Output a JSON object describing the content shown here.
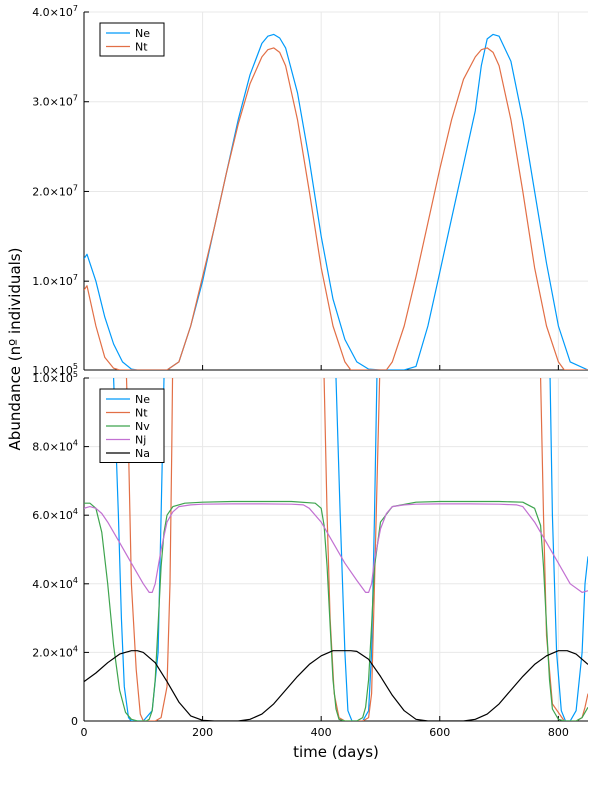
{
  "chart_data": [
    {
      "type": "line",
      "panel": "top",
      "xlim": [
        0,
        850
      ],
      "ylim": [
        100000,
        40000000
      ],
      "ytick_values": [
        10000000,
        20000000,
        30000000,
        40000000
      ],
      "ytick_labels": [
        {
          "mant": "1.0×10",
          "exp": "7"
        },
        {
          "mant": "2.0×10",
          "exp": "7"
        },
        {
          "mant": "3.0×10",
          "exp": "7"
        },
        {
          "mant": "4.0×10",
          "exp": "7"
        }
      ],
      "ytick_bottom": {
        "mant": "1.0×10",
        "exp": "5"
      },
      "grid": true,
      "legend_position": "top-left",
      "series": [
        {
          "name": "Ne",
          "color": "#009AFA",
          "x": [
            0,
            5,
            20,
            35,
            50,
            65,
            80,
            90,
            100,
            140,
            160,
            180,
            200,
            220,
            240,
            260,
            280,
            300,
            310,
            320,
            330,
            340,
            360,
            380,
            400,
            420,
            440,
            460,
            480,
            500,
            520,
            540,
            560,
            580,
            600,
            620,
            640,
            660,
            670,
            680,
            690,
            700,
            720,
            740,
            760,
            780,
            800,
            820,
            850
          ],
          "y": [
            12500000,
            13000000,
            10000000,
            6000000,
            3000000,
            1000000,
            200000,
            100000,
            100000,
            100000,
            1000000,
            5000000,
            10000000,
            16000000,
            22000000,
            28000000,
            33000000,
            36500000,
            37300000,
            37500000,
            37100000,
            36000000,
            31000000,
            23500000,
            15000000,
            8000000,
            3500000,
            1000000,
            200000,
            100000,
            100000,
            100000,
            500000,
            5000000,
            11000000,
            17000000,
            23000000,
            29000000,
            34000000,
            37000000,
            37500000,
            37300000,
            34500000,
            28000000,
            20000000,
            12000000,
            5000000,
            1000000,
            100000
          ]
        },
        {
          "name": "Nt",
          "color": "#E26F46",
          "x": [
            0,
            5,
            20,
            35,
            50,
            60,
            70,
            80,
            140,
            160,
            180,
            200,
            220,
            240,
            260,
            280,
            300,
            310,
            320,
            330,
            340,
            360,
            380,
            400,
            420,
            440,
            450,
            510,
            520,
            540,
            560,
            580,
            600,
            620,
            640,
            660,
            670,
            680,
            690,
            700,
            720,
            740,
            760,
            780,
            800,
            810,
            850
          ],
          "y": [
            9000000,
            9500000,
            5000000,
            1500000,
            300000,
            100000,
            100000,
            100000,
            100000,
            1000000,
            5000000,
            10500000,
            16000000,
            22000000,
            27500000,
            32000000,
            35000000,
            35800000,
            36000000,
            35500000,
            34000000,
            28000000,
            20000000,
            11500000,
            5000000,
            1000000,
            100000,
            100000,
            1000000,
            5000000,
            10500000,
            16500000,
            22500000,
            28000000,
            32500000,
            35000000,
            35800000,
            36000000,
            35500000,
            34000000,
            28000000,
            20000000,
            11500000,
            5000000,
            1000000,
            100000,
            100000
          ]
        }
      ]
    },
    {
      "type": "line",
      "panel": "bottom",
      "xlim": [
        0,
        850
      ],
      "ylim": [
        0,
        100000
      ],
      "xtick_values": [
        0,
        200,
        400,
        600,
        800
      ],
      "xtick_labels": [
        "0",
        "200",
        "400",
        "600",
        "800"
      ],
      "ytick_values": [
        0,
        20000,
        40000,
        60000,
        80000,
        100000
      ],
      "ytick_labels": [
        {
          "mant": "0",
          "exp": ""
        },
        {
          "mant": "2.0×10",
          "exp": "4"
        },
        {
          "mant": "4.0×10",
          "exp": "4"
        },
        {
          "mant": "6.0×10",
          "exp": "4"
        },
        {
          "mant": "8.0×10",
          "exp": "4"
        },
        {
          "mant": "1.0×10",
          "exp": "5"
        }
      ],
      "xlabel": "time (days)",
      "grid": true,
      "legend_position": "top-left",
      "series": [
        {
          "name": "Ne",
          "color": "#009AFA",
          "x": [
            0,
            40,
            50,
            58,
            63,
            68,
            75,
            80,
            85,
            100,
            115,
            125,
            130,
            135,
            140,
            420,
            425,
            432,
            440,
            445,
            452,
            460,
            470,
            480,
            485,
            490,
            495,
            785,
            790,
            797,
            805,
            812,
            820,
            830,
            840,
            845,
            850
          ],
          "y": [
            110000,
            110000,
            100000,
            60000,
            30000,
            10000,
            1000,
            0,
            0,
            0,
            3000,
            20000,
            60000,
            100000,
            110000,
            110000,
            100000,
            60000,
            20000,
            3000,
            0,
            0,
            0,
            3000,
            20000,
            60000,
            110000,
            110000,
            60000,
            20000,
            3000,
            0,
            0,
            3000,
            20000,
            40000,
            48000
          ]
        },
        {
          "name": "Nt",
          "color": "#E26F46",
          "x": [
            0,
            70,
            75,
            80,
            88,
            95,
            100,
            120,
            130,
            140,
            145,
            148,
            150,
            400,
            405,
            410,
            415,
            422,
            430,
            440,
            470,
            480,
            485,
            490,
            500,
            765,
            770,
            775,
            780,
            790,
            810,
            830,
            840,
            845,
            850
          ],
          "y": [
            110000,
            110000,
            80000,
            40000,
            15000,
            2000,
            0,
            0,
            1000,
            10000,
            40000,
            80000,
            110000,
            110000,
            100000,
            60000,
            30000,
            8000,
            1000,
            0,
            0,
            1000,
            8000,
            40000,
            110000,
            110000,
            100000,
            60000,
            25000,
            5000,
            0,
            0,
            1000,
            4000,
            8000
          ]
        },
        {
          "name": "Nv",
          "color": "#3EA44E",
          "x": [
            0,
            10,
            20,
            30,
            40,
            50,
            60,
            70,
            80,
            90,
            100,
            105,
            110,
            115,
            120,
            125,
            130,
            135,
            140,
            150,
            170,
            200,
            250,
            300,
            350,
            390,
            400,
            405,
            410,
            415,
            420,
            425,
            430,
            440,
            450,
            460,
            470,
            475,
            480,
            485,
            490,
            500,
            520,
            560,
            600,
            650,
            700,
            740,
            760,
            770,
            775,
            780,
            785,
            790,
            800,
            810,
            820,
            830,
            840,
            850
          ],
          "y": [
            63500,
            63500,
            62000,
            55000,
            40000,
            22000,
            9000,
            2500,
            500,
            0,
            0,
            0,
            500,
            3000,
            12000,
            28000,
            45000,
            55000,
            60000,
            62500,
            63500,
            63800,
            64000,
            64000,
            64000,
            63500,
            62000,
            57000,
            45000,
            28000,
            12000,
            3500,
            500,
            0,
            0,
            0,
            1000,
            4000,
            12000,
            28000,
            45000,
            58000,
            62500,
            63800,
            64000,
            64000,
            64000,
            63800,
            62000,
            57000,
            45000,
            28000,
            12000,
            3500,
            500,
            0,
            0,
            0,
            1000,
            4000
          ]
        },
        {
          "name": "Nj",
          "color": "#C271D2",
          "x": [
            0,
            10,
            20,
            30,
            40,
            60,
            80,
            100,
            110,
            115,
            120,
            130,
            140,
            150,
            160,
            180,
            200,
            250,
            300,
            350,
            370,
            380,
            400,
            420,
            440,
            460,
            475,
            480,
            485,
            490,
            500,
            510,
            520,
            540,
            560,
            600,
            650,
            700,
            730,
            740,
            760,
            780,
            800,
            820,
            840,
            850
          ],
          "y": [
            62000,
            62500,
            62000,
            60500,
            58000,
            52000,
            46000,
            40000,
            37500,
            37500,
            40000,
            50000,
            58000,
            61000,
            62500,
            63000,
            63200,
            63300,
            63300,
            63200,
            63000,
            62000,
            58000,
            52000,
            46000,
            41000,
            37500,
            37500,
            40000,
            47000,
            56000,
            60500,
            62500,
            63000,
            63200,
            63300,
            63300,
            63200,
            63000,
            62500,
            58000,
            52000,
            46000,
            40000,
            37500,
            38000
          ]
        },
        {
          "name": "Na",
          "color": "#000000",
          "x": [
            0,
            20,
            40,
            60,
            80,
            90,
            100,
            120,
            140,
            160,
            180,
            200,
            220,
            240,
            260,
            280,
            300,
            320,
            340,
            360,
            380,
            400,
            420,
            440,
            450,
            460,
            480,
            500,
            520,
            540,
            560,
            580,
            600,
            620,
            640,
            660,
            680,
            700,
            720,
            740,
            760,
            780,
            800,
            815,
            830,
            850
          ],
          "y": [
            11500,
            14000,
            17000,
            19500,
            20500,
            20500,
            20000,
            17000,
            11500,
            5500,
            1500,
            200,
            0,
            0,
            0,
            500,
            2000,
            5000,
            9000,
            13000,
            16500,
            19000,
            20500,
            20500,
            20500,
            20300,
            18000,
            13000,
            7500,
            3000,
            500,
            0,
            0,
            0,
            0,
            500,
            2000,
            5000,
            9000,
            13000,
            16500,
            19000,
            20500,
            20500,
            19500,
            16500
          ]
        }
      ]
    }
  ],
  "shared_ylabel": "Abundance (nº individuals)"
}
